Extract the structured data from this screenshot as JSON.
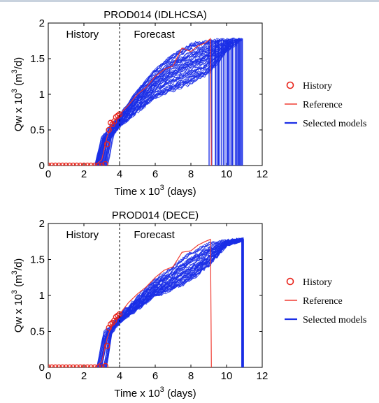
{
  "chart_data": [
    {
      "type": "line",
      "title": "PROD014 (IDLHCSA)",
      "xlabel": "Time x 10",
      "xlabel_sup": "3",
      "xlabel_tail": " (days)",
      "ylabel": "Qw x 10",
      "ylabel_sup": "3",
      "ylabel_tail": " (m",
      "ylabel_sup2": "3",
      "ylabel_end": "/d)",
      "xlim": [
        0,
        12
      ],
      "ylim": [
        0,
        2
      ],
      "xticks": [
        0,
        2,
        4,
        6,
        8,
        10,
        12
      ],
      "yticks": [
        0,
        0.5,
        1,
        1.5,
        2
      ],
      "xtick_labels": [
        "0",
        "2",
        "4",
        "6",
        "8",
        "10",
        "12"
      ],
      "ytick_labels": [
        "0",
        "0.5",
        "1",
        "1.5",
        "2"
      ],
      "grid": false,
      "divider_x": 4,
      "region_labels": [
        "History",
        "Forecast"
      ],
      "legend_position": "right",
      "legend": [
        "History",
        "Reference",
        "Selected models"
      ],
      "history": {
        "name": "History",
        "color": "#e8231a",
        "x": [
          0,
          0.2,
          0.4,
          0.6,
          0.8,
          1.0,
          1.2,
          1.4,
          1.6,
          1.8,
          2.0,
          2.2,
          2.4,
          2.6,
          2.8,
          3.0,
          3.2,
          3.3,
          3.4,
          3.5,
          3.6,
          3.7,
          3.8,
          3.9,
          4.0
        ],
        "y": [
          0,
          0,
          0,
          0,
          0,
          0,
          0,
          0,
          0,
          0,
          0,
          0,
          0,
          0,
          0,
          0,
          0.02,
          0.3,
          0.5,
          0.6,
          0.58,
          0.62,
          0.68,
          0.7,
          0.72
        ]
      },
      "reference": {
        "name": "Reference",
        "color": "#f03c32",
        "x": [
          0,
          2.6,
          3.0,
          3.3,
          3.6,
          4.0,
          4.5,
          5.0,
          5.5,
          6.0,
          6.5,
          7.0,
          7.5,
          8.0,
          8.4,
          8.8,
          9.1,
          9.15
        ],
        "y": [
          0,
          0,
          0.08,
          0.4,
          0.6,
          0.72,
          0.85,
          1.0,
          1.1,
          1.25,
          1.35,
          1.4,
          1.65,
          1.6,
          1.68,
          1.72,
          1.78,
          0
        ]
      },
      "selected_models": {
        "name": "Selected models",
        "color": "#1a2ee6",
        "count": 60,
        "start_range": [
          2.6,
          3.4
        ],
        "lower_bound": {
          "x": [
            3.4,
            4.0,
            5.0,
            6.0,
            7.0,
            8.0,
            9.0,
            10.0,
            10.8
          ],
          "y": [
            0.35,
            0.55,
            0.75,
            0.95,
            1.05,
            1.15,
            1.3,
            1.6,
            1.75
          ]
        },
        "upper_bound": {
          "x": [
            3.0,
            4.0,
            5.0,
            6.0,
            7.0,
            8.0,
            9.0,
            10.0,
            10.8
          ],
          "y": [
            0.4,
            0.7,
            1.05,
            1.35,
            1.55,
            1.7,
            1.75,
            1.77,
            1.78
          ]
        },
        "end_range": [
          9.0,
          10.95
        ],
        "end_x": 10.85,
        "end_y": 1.78
      }
    },
    {
      "type": "line",
      "title": "PROD014 (DECE)",
      "xlabel": "Time x 10",
      "xlabel_sup": "3",
      "xlabel_tail": " (days)",
      "ylabel": "Qw x 10",
      "ylabel_sup": "3",
      "ylabel_tail": " (m",
      "ylabel_sup2": "3",
      "ylabel_end": "/d)",
      "xlim": [
        0,
        12
      ],
      "ylim": [
        0,
        2
      ],
      "xticks": [
        0,
        2,
        4,
        6,
        8,
        10,
        12
      ],
      "yticks": [
        0,
        0.5,
        1,
        1.5,
        2
      ],
      "xtick_labels": [
        "0",
        "2",
        "4",
        "6",
        "8",
        "10",
        "12"
      ],
      "ytick_labels": [
        "0",
        "0.5",
        "1",
        "1.5",
        "2"
      ],
      "grid": false,
      "divider_x": 4,
      "region_labels": [
        "History",
        "Forecast"
      ],
      "legend_position": "right",
      "legend": [
        "History",
        "Reference",
        "Selected models"
      ],
      "history": {
        "name": "History",
        "color": "#e8231a",
        "x": [
          0,
          0.2,
          0.4,
          0.6,
          0.8,
          1.0,
          1.2,
          1.4,
          1.6,
          1.8,
          2.0,
          2.2,
          2.4,
          2.6,
          2.8,
          3.0,
          3.2,
          3.3,
          3.4,
          3.5,
          3.6,
          3.7,
          3.8,
          3.9,
          4.0
        ],
        "y": [
          0,
          0,
          0,
          0,
          0,
          0,
          0,
          0,
          0,
          0,
          0,
          0,
          0,
          0,
          0,
          0,
          0.02,
          0.3,
          0.55,
          0.6,
          0.62,
          0.65,
          0.7,
          0.72,
          0.74
        ]
      },
      "reference": {
        "name": "Reference",
        "color": "#f03c32",
        "x": [
          0,
          2.6,
          3.0,
          3.3,
          3.6,
          4.0,
          4.5,
          5.0,
          5.5,
          6.0,
          6.5,
          7.0,
          7.5,
          8.0,
          8.4,
          8.8,
          9.1,
          9.15
        ],
        "y": [
          0,
          0,
          0.08,
          0.4,
          0.62,
          0.74,
          0.9,
          1.02,
          1.12,
          1.25,
          1.35,
          1.4,
          1.6,
          1.62,
          1.7,
          1.75,
          1.78,
          0
        ]
      },
      "selected_models": {
        "name": "Selected models",
        "color": "#1a2ee6",
        "count": 50,
        "start_range": [
          2.7,
          3.3
        ],
        "lower_bound": {
          "x": [
            3.3,
            4.0,
            5.0,
            6.0,
            7.0,
            8.0,
            9.0,
            10.0,
            10.9
          ],
          "y": [
            0.4,
            0.62,
            0.8,
            0.98,
            1.08,
            1.2,
            1.4,
            1.7,
            1.77
          ]
        },
        "upper_bound": {
          "x": [
            3.0,
            4.0,
            5.0,
            6.0,
            7.0,
            8.0,
            9.0,
            10.0,
            10.9
          ],
          "y": [
            0.45,
            0.72,
            0.98,
            1.22,
            1.4,
            1.6,
            1.72,
            1.76,
            1.78
          ]
        },
        "end_range": [
          10.85,
          10.95
        ],
        "end_x": 10.9,
        "end_y": 1.78
      }
    }
  ]
}
